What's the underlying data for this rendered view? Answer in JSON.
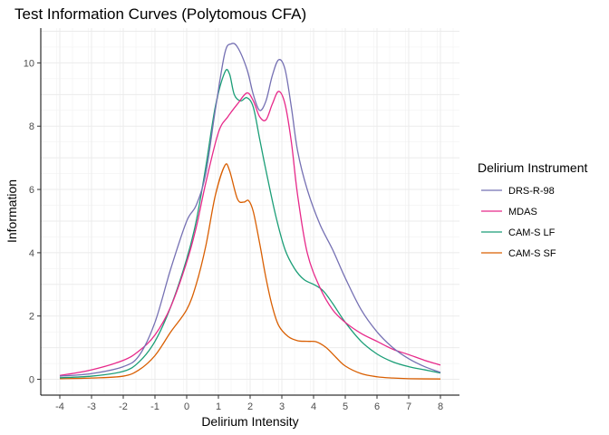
{
  "chart_data": {
    "type": "line",
    "title": "Test Information Curves (Polytomous CFA)",
    "xlabel": "Delirium Intensity",
    "ylabel": "Information",
    "xlim": [
      -4,
      8
    ],
    "ylim": [
      0,
      11
    ],
    "x_ticks": [
      -4,
      -3,
      -2,
      -1,
      0,
      1,
      2,
      3,
      4,
      5,
      6,
      7,
      8
    ],
    "y_ticks": [
      0,
      2,
      4,
      6,
      8,
      10
    ],
    "grid": true,
    "legend": {
      "title": "Delirium Instrument",
      "position": "right"
    },
    "series": [
      {
        "name": "DRS-R-98",
        "color": "#7570b3",
        "points": [
          [
            -4,
            0.1
          ],
          [
            -3,
            0.18
          ],
          [
            -2,
            0.4
          ],
          [
            -1.5,
            0.75
          ],
          [
            -1,
            1.8
          ],
          [
            -0.5,
            3.5
          ],
          [
            0,
            5.0
          ],
          [
            0.3,
            5.5
          ],
          [
            0.6,
            6.5
          ],
          [
            0.9,
            8.5
          ],
          [
            1.2,
            10.3
          ],
          [
            1.4,
            10.6
          ],
          [
            1.6,
            10.5
          ],
          [
            1.9,
            9.8
          ],
          [
            2.1,
            9.0
          ],
          [
            2.3,
            8.5
          ],
          [
            2.5,
            8.8
          ],
          [
            2.7,
            9.6
          ],
          [
            2.9,
            10.1
          ],
          [
            3.1,
            9.8
          ],
          [
            3.3,
            8.6
          ],
          [
            3.5,
            7.2
          ],
          [
            3.8,
            6.0
          ],
          [
            4.2,
            4.9
          ],
          [
            4.6,
            4.1
          ],
          [
            5,
            3.2
          ],
          [
            5.5,
            2.2
          ],
          [
            6,
            1.5
          ],
          [
            6.5,
            1.0
          ],
          [
            7,
            0.65
          ],
          [
            7.5,
            0.4
          ],
          [
            8,
            0.22
          ]
        ]
      },
      {
        "name": "MDAS",
        "color": "#e7298a",
        "points": [
          [
            -4,
            0.12
          ],
          [
            -3,
            0.3
          ],
          [
            -2,
            0.6
          ],
          [
            -1.5,
            0.9
          ],
          [
            -1,
            1.4
          ],
          [
            -0.5,
            2.3
          ],
          [
            0,
            3.7
          ],
          [
            0.3,
            4.8
          ],
          [
            0.6,
            6.2
          ],
          [
            1,
            7.8
          ],
          [
            1.3,
            8.3
          ],
          [
            1.6,
            8.7
          ],
          [
            1.9,
            9.05
          ],
          [
            2.1,
            8.8
          ],
          [
            2.3,
            8.3
          ],
          [
            2.5,
            8.2
          ],
          [
            2.7,
            8.7
          ],
          [
            2.9,
            9.1
          ],
          [
            3.1,
            8.7
          ],
          [
            3.3,
            7.5
          ],
          [
            3.5,
            5.8
          ],
          [
            3.8,
            4.0
          ],
          [
            4.2,
            2.9
          ],
          [
            4.6,
            2.2
          ],
          [
            5,
            1.8
          ],
          [
            5.5,
            1.45
          ],
          [
            6,
            1.2
          ],
          [
            6.5,
            0.95
          ],
          [
            7,
            0.78
          ],
          [
            7.5,
            0.6
          ],
          [
            8,
            0.45
          ]
        ]
      },
      {
        "name": "CAM-S LF",
        "color": "#1b9e77",
        "points": [
          [
            -4,
            0.05
          ],
          [
            -3,
            0.1
          ],
          [
            -2,
            0.25
          ],
          [
            -1.5,
            0.55
          ],
          [
            -1,
            1.2
          ],
          [
            -0.5,
            2.3
          ],
          [
            0,
            3.8
          ],
          [
            0.3,
            5.0
          ],
          [
            0.6,
            6.7
          ],
          [
            0.9,
            8.6
          ],
          [
            1.2,
            9.7
          ],
          [
            1.35,
            9.65
          ],
          [
            1.5,
            9.0
          ],
          [
            1.7,
            8.8
          ],
          [
            1.9,
            8.9
          ],
          [
            2.1,
            8.6
          ],
          [
            2.3,
            7.6
          ],
          [
            2.5,
            6.6
          ],
          [
            2.8,
            5.2
          ],
          [
            3.1,
            4.1
          ],
          [
            3.4,
            3.5
          ],
          [
            3.7,
            3.15
          ],
          [
            4,
            3.0
          ],
          [
            4.3,
            2.8
          ],
          [
            4.6,
            2.4
          ],
          [
            5,
            1.8
          ],
          [
            5.5,
            1.2
          ],
          [
            6,
            0.8
          ],
          [
            6.5,
            0.55
          ],
          [
            7,
            0.4
          ],
          [
            7.5,
            0.3
          ],
          [
            8,
            0.2
          ]
        ]
      },
      {
        "name": "CAM-S SF",
        "color": "#d95f02",
        "points": [
          [
            -4,
            0.02
          ],
          [
            -3,
            0.04
          ],
          [
            -2,
            0.1
          ],
          [
            -1.5,
            0.3
          ],
          [
            -1,
            0.75
          ],
          [
            -0.5,
            1.5
          ],
          [
            0,
            2.2
          ],
          [
            0.3,
            3.0
          ],
          [
            0.6,
            4.2
          ],
          [
            0.9,
            5.8
          ],
          [
            1.2,
            6.75
          ],
          [
            1.35,
            6.6
          ],
          [
            1.6,
            5.7
          ],
          [
            1.8,
            5.6
          ],
          [
            1.95,
            5.65
          ],
          [
            2.1,
            5.3
          ],
          [
            2.3,
            4.3
          ],
          [
            2.5,
            3.2
          ],
          [
            2.7,
            2.3
          ],
          [
            2.9,
            1.7
          ],
          [
            3.2,
            1.35
          ],
          [
            3.5,
            1.22
          ],
          [
            3.8,
            1.2
          ],
          [
            4.1,
            1.18
          ],
          [
            4.4,
            1.0
          ],
          [
            4.7,
            0.7
          ],
          [
            5,
            0.42
          ],
          [
            5.5,
            0.18
          ],
          [
            6,
            0.08
          ],
          [
            6.5,
            0.04
          ],
          [
            7,
            0.02
          ],
          [
            8,
            0.01
          ]
        ]
      }
    ]
  }
}
